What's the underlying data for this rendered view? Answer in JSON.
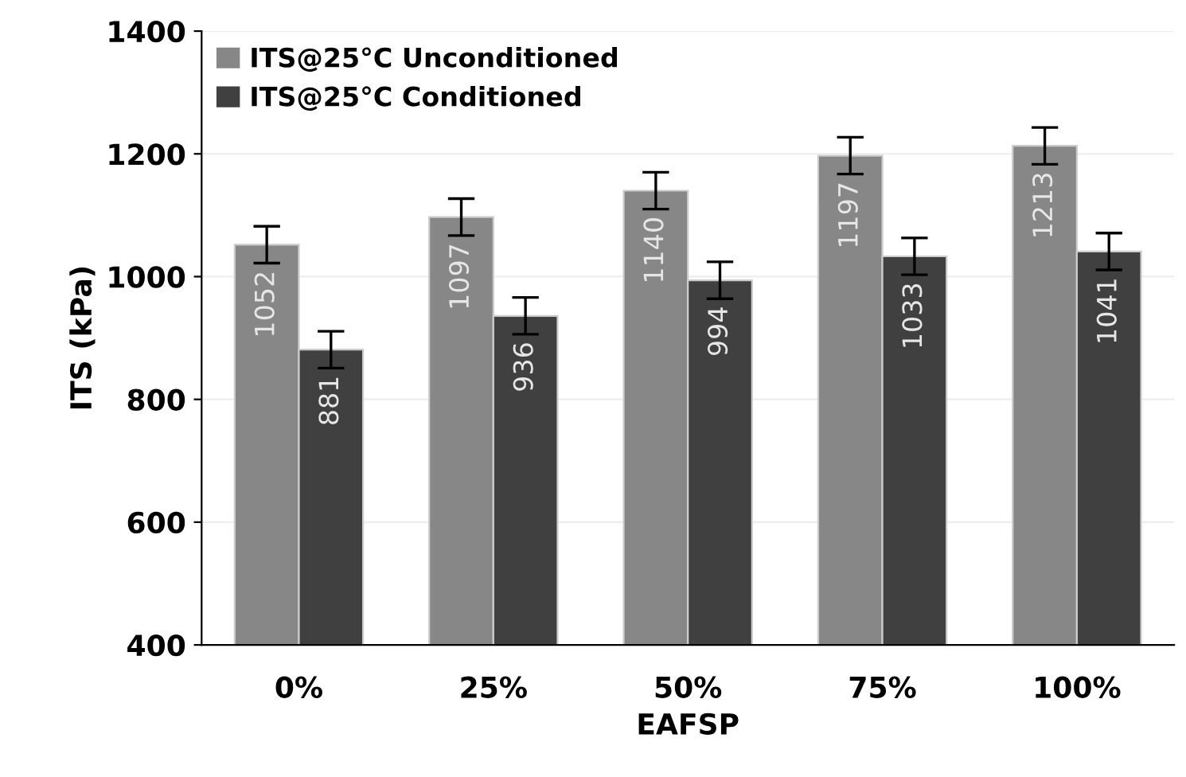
{
  "chart_data": {
    "type": "bar",
    "xlabel": "EAFSP",
    "ylabel": "ITS (kPa)",
    "categories": [
      "0%",
      "25%",
      "50%",
      "75%",
      "100%"
    ],
    "series": [
      {
        "name": "ITS@25°C Unconditioned",
        "color": "#878787",
        "values": [
          1052,
          1097,
          1140,
          1197,
          1213
        ],
        "errors": [
          30,
          30,
          30,
          30,
          30
        ]
      },
      {
        "name": "ITS@25°C Conditioned",
        "color": "#404040",
        "values": [
          881,
          936,
          994,
          1033,
          1041
        ],
        "errors": [
          30,
          30,
          30,
          30,
          30
        ]
      }
    ],
    "ylim": [
      400,
      1400
    ],
    "yticks": [
      400,
      600,
      800,
      1000,
      1200,
      1400
    ],
    "grid": "y",
    "legend": "top left",
    "data_labels": true
  }
}
